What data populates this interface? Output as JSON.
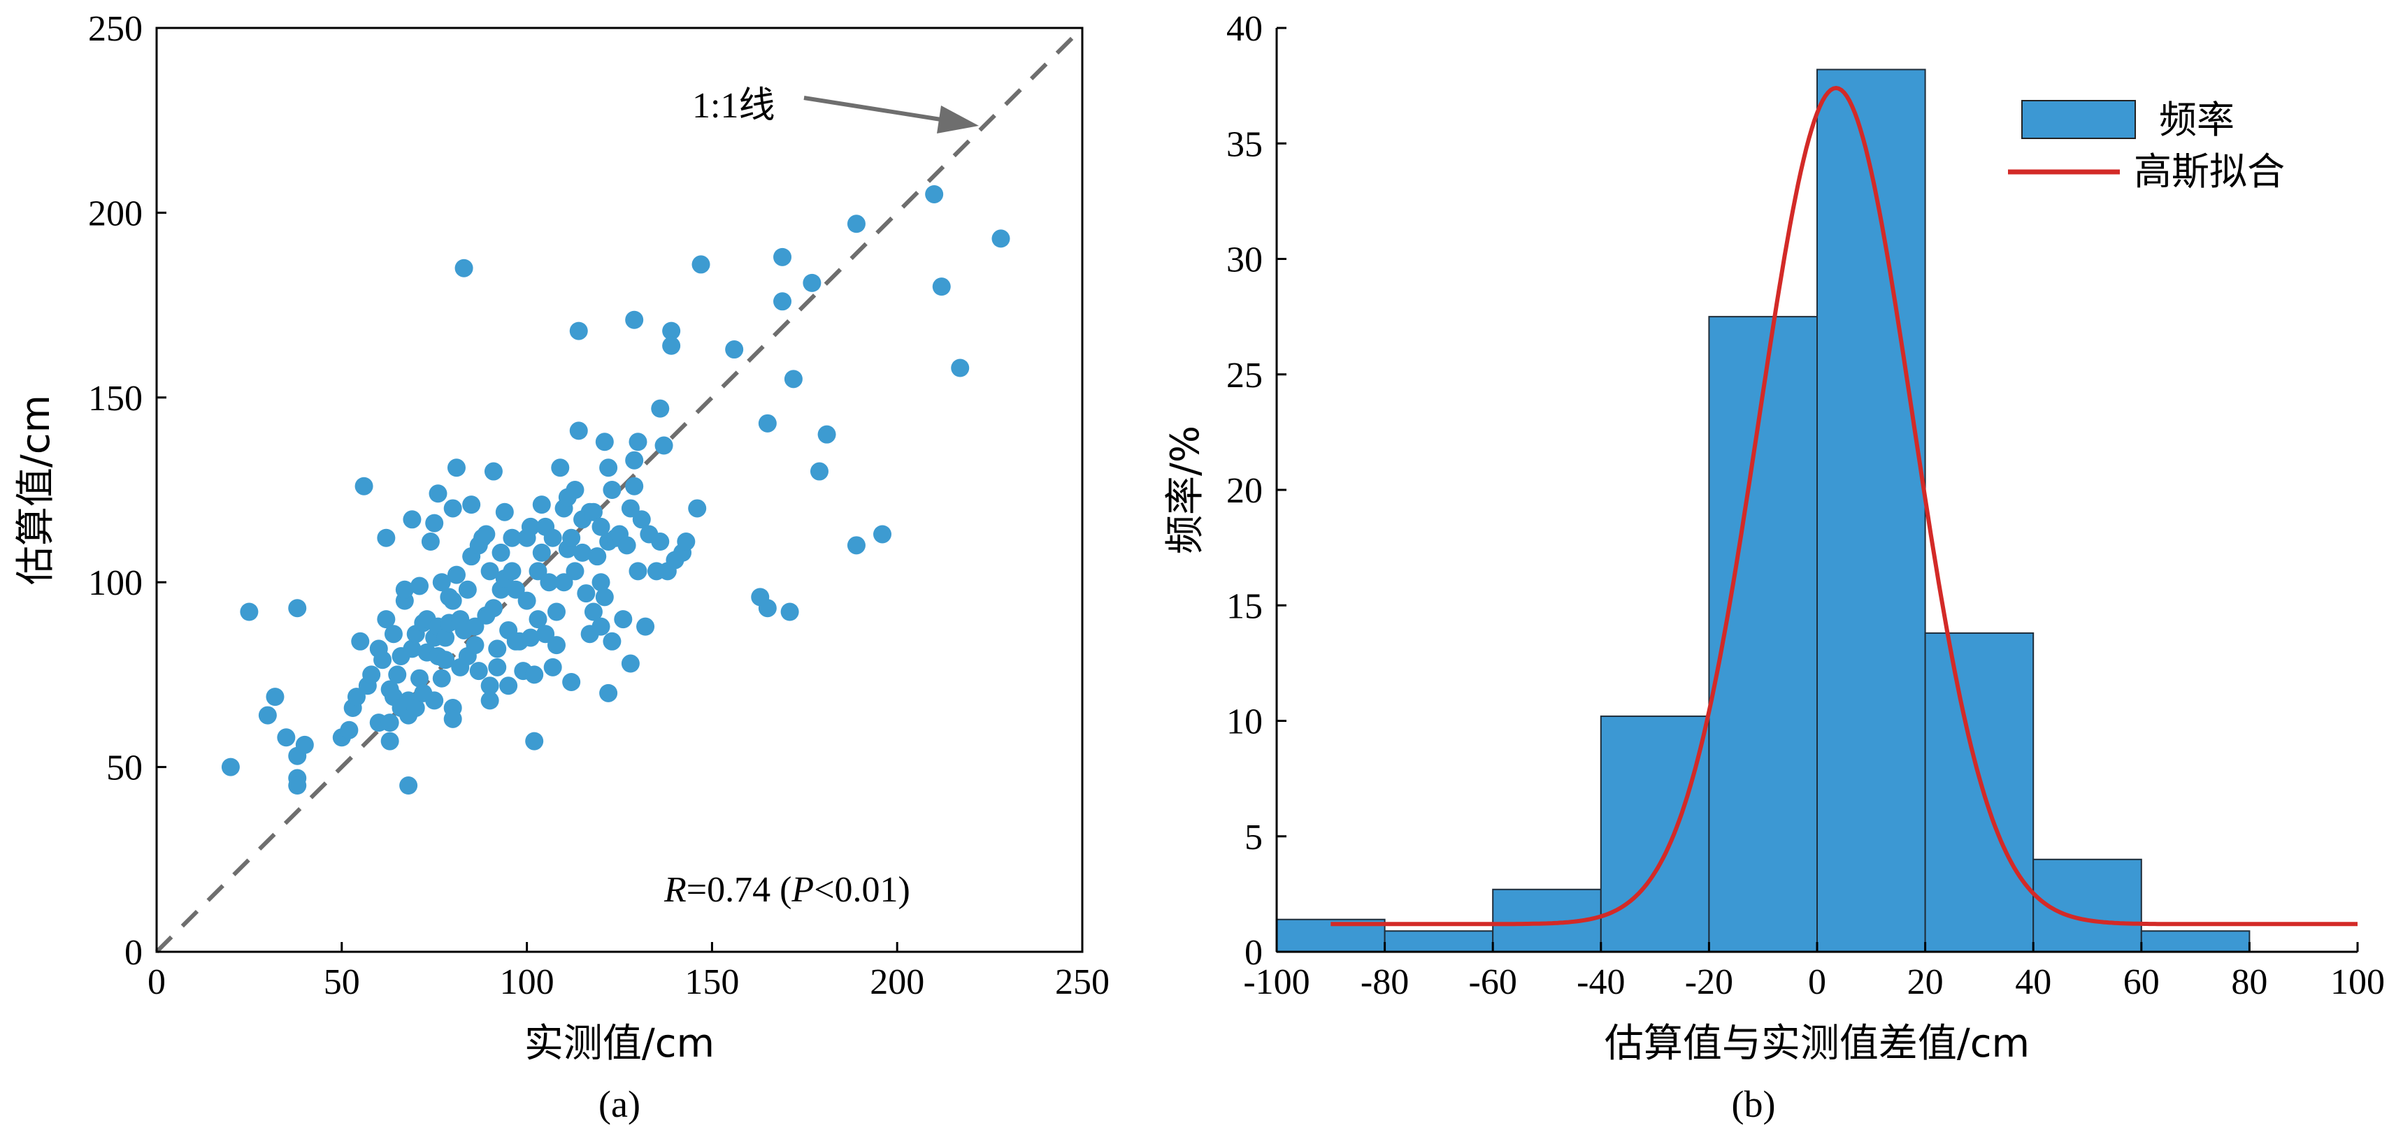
{
  "chart_data": [
    {
      "type": "scatter",
      "panel_label": "(a)",
      "xlabel": "实测值/cm",
      "ylabel": "估算值/cm",
      "xlim": [
        0,
        250
      ],
      "ylim": [
        0,
        250
      ],
      "xticks": [
        "0",
        "50",
        "100",
        "150",
        "200",
        "250"
      ],
      "yticks": [
        "0",
        "50",
        "100",
        "150",
        "200",
        "250"
      ],
      "point_color": "#3d9bd1",
      "line_color": "#6e6e6e",
      "reference_line": {
        "label": "1:1线",
        "points": [
          [
            0,
            0
          ],
          [
            250,
            250
          ]
        ]
      },
      "annotation": {
        "r_symbol": "R",
        "r_value": "=0.74 (",
        "p_symbol": "P",
        "p_value": "<0.01)"
      },
      "points": [
        [
          20,
          50
        ],
        [
          25,
          92
        ],
        [
          30,
          64
        ],
        [
          32,
          69
        ],
        [
          35,
          58
        ],
        [
          38,
          53
        ],
        [
          38,
          47
        ],
        [
          38,
          45
        ],
        [
          38,
          93
        ],
        [
          40,
          56
        ],
        [
          50,
          58
        ],
        [
          52,
          60
        ],
        [
          53,
          66
        ],
        [
          54,
          69
        ],
        [
          55,
          84
        ],
        [
          56,
          126
        ],
        [
          57,
          72
        ],
        [
          58,
          75
        ],
        [
          60,
          62
        ],
        [
          60,
          82
        ],
        [
          61,
          79
        ],
        [
          62,
          112
        ],
        [
          62,
          90
        ],
        [
          63,
          62
        ],
        [
          63,
          57
        ],
        [
          63,
          71
        ],
        [
          64,
          69
        ],
        [
          64,
          86
        ],
        [
          65,
          75
        ],
        [
          66,
          66
        ],
        [
          66,
          80
        ],
        [
          67,
          95
        ],
        [
          67,
          98
        ],
        [
          68,
          45
        ],
        [
          68,
          64
        ],
        [
          68,
          68
        ],
        [
          69,
          82
        ],
        [
          69,
          117
        ],
        [
          70,
          66
        ],
        [
          70,
          86
        ],
        [
          71,
          74
        ],
        [
          71,
          99
        ],
        [
          72,
          89
        ],
        [
          72,
          70
        ],
        [
          73,
          90
        ],
        [
          73,
          81
        ],
        [
          74,
          111
        ],
        [
          75,
          85
        ],
        [
          75,
          68
        ],
        [
          75,
          116
        ],
        [
          76,
          80
        ],
        [
          76,
          88
        ],
        [
          76,
          124
        ],
        [
          77,
          74
        ],
        [
          77,
          100
        ],
        [
          78,
          85
        ],
        [
          78,
          79
        ],
        [
          79,
          89
        ],
        [
          79,
          96
        ],
        [
          80,
          95
        ],
        [
          80,
          66
        ],
        [
          80,
          63
        ],
        [
          80,
          120
        ],
        [
          81,
          131
        ],
        [
          81,
          102
        ],
        [
          82,
          90
        ],
        [
          82,
          77
        ],
        [
          83,
          87
        ],
        [
          83,
          185
        ],
        [
          84,
          98
        ],
        [
          84,
          80
        ],
        [
          85,
          107
        ],
        [
          85,
          121
        ],
        [
          86,
          88
        ],
        [
          86,
          83
        ],
        [
          87,
          110
        ],
        [
          87,
          76
        ],
        [
          88,
          112
        ],
        [
          89,
          91
        ],
        [
          89,
          113
        ],
        [
          90,
          103
        ],
        [
          90,
          72
        ],
        [
          90,
          68
        ],
        [
          91,
          130
        ],
        [
          91,
          93
        ],
        [
          92,
          82
        ],
        [
          92,
          77
        ],
        [
          93,
          108
        ],
        [
          93,
          98
        ],
        [
          94,
          101
        ],
        [
          94,
          119
        ],
        [
          95,
          87
        ],
        [
          95,
          72
        ],
        [
          96,
          112
        ],
        [
          96,
          103
        ],
        [
          97,
          98
        ],
        [
          97,
          84
        ],
        [
          98,
          84
        ],
        [
          99,
          76
        ],
        [
          100,
          112
        ],
        [
          100,
          95
        ],
        [
          101,
          115
        ],
        [
          101,
          85
        ],
        [
          102,
          57
        ],
        [
          102,
          75
        ],
        [
          103,
          103
        ],
        [
          103,
          90
        ],
        [
          104,
          108
        ],
        [
          104,
          121
        ],
        [
          105,
          86
        ],
        [
          105,
          115
        ],
        [
          106,
          100
        ],
        [
          107,
          112
        ],
        [
          107,
          77
        ],
        [
          108,
          92
        ],
        [
          108,
          83
        ],
        [
          109,
          131
        ],
        [
          110,
          120
        ],
        [
          110,
          100
        ],
        [
          111,
          109
        ],
        [
          111,
          123
        ],
        [
          112,
          73
        ],
        [
          112,
          112
        ],
        [
          113,
          103
        ],
        [
          113,
          125
        ],
        [
          114,
          168
        ],
        [
          114,
          141
        ],
        [
          115,
          117
        ],
        [
          115,
          108
        ],
        [
          116,
          97
        ],
        [
          117,
          86
        ],
        [
          117,
          119
        ],
        [
          118,
          119
        ],
        [
          118,
          92
        ],
        [
          119,
          107
        ],
        [
          120,
          88
        ],
        [
          120,
          100
        ],
        [
          120,
          115
        ],
        [
          121,
          96
        ],
        [
          121,
          138
        ],
        [
          122,
          70
        ],
        [
          122,
          131
        ],
        [
          122,
          111
        ],
        [
          123,
          84
        ],
        [
          123,
          125
        ],
        [
          124,
          112
        ],
        [
          125,
          113
        ],
        [
          126,
          90
        ],
        [
          127,
          110
        ],
        [
          128,
          120
        ],
        [
          128,
          78
        ],
        [
          129,
          126
        ],
        [
          129,
          133
        ],
        [
          129,
          171
        ],
        [
          130,
          138
        ],
        [
          130,
          103
        ],
        [
          131,
          117
        ],
        [
          132,
          88
        ],
        [
          133,
          113
        ],
        [
          135,
          103
        ],
        [
          136,
          147
        ],
        [
          136,
          111
        ],
        [
          137,
          137
        ],
        [
          138,
          103
        ],
        [
          139,
          168
        ],
        [
          139,
          164
        ],
        [
          140,
          106
        ],
        [
          142,
          108
        ],
        [
          143,
          111
        ],
        [
          146,
          120
        ],
        [
          147,
          186
        ],
        [
          156,
          163
        ],
        [
          163,
          96
        ],
        [
          165,
          93
        ],
        [
          165,
          143
        ],
        [
          169,
          188
        ],
        [
          169,
          176
        ],
        [
          171,
          92
        ],
        [
          172,
          155
        ],
        [
          177,
          181
        ],
        [
          179,
          130
        ],
        [
          181,
          140
        ],
        [
          189,
          197
        ],
        [
          189,
          110
        ],
        [
          196,
          113
        ],
        [
          210,
          205
        ],
        [
          212,
          180
        ],
        [
          217,
          158
        ],
        [
          228,
          193
        ]
      ]
    },
    {
      "type": "bar",
      "panel_label": "(b)",
      "xlabel": "估算值与实测值差值/cm",
      "ylabel": "频率/%",
      "xlim": [
        -100,
        100
      ],
      "ylim": [
        0,
        40
      ],
      "xticks": [
        "-100",
        "-80",
        "-60",
        "-40",
        "-20",
        "0",
        "20",
        "40",
        "60",
        "80",
        "100"
      ],
      "yticks": [
        "0",
        "5",
        "10",
        "15",
        "20",
        "25",
        "30",
        "35",
        "40"
      ],
      "bar_color": "#3c98d3",
      "curve_color": "#d32a27",
      "bins": [
        {
          "from": -100,
          "to": -80,
          "value": 1.4
        },
        {
          "from": -80,
          "to": -60,
          "value": 0.9
        },
        {
          "from": -60,
          "to": -40,
          "value": 2.7
        },
        {
          "from": -40,
          "to": -20,
          "value": 10.2
        },
        {
          "from": -20,
          "to": 0,
          "value": 27.5
        },
        {
          "from": 0,
          "to": 20,
          "value": 38.2
        },
        {
          "from": 20,
          "to": 40,
          "value": 13.8
        },
        {
          "from": 40,
          "to": 60,
          "value": 4.0
        },
        {
          "from": 60,
          "to": 80,
          "value": 0.9
        }
      ],
      "gaussian_fit": {
        "baseline": 1.2,
        "peak": 37.4,
        "center": 3.5,
        "sigma": 14.2,
        "x_range": [
          -90,
          100
        ]
      },
      "legend": [
        "频率",
        "高斯拟合"
      ],
      "legend_position": "top-right"
    }
  ]
}
